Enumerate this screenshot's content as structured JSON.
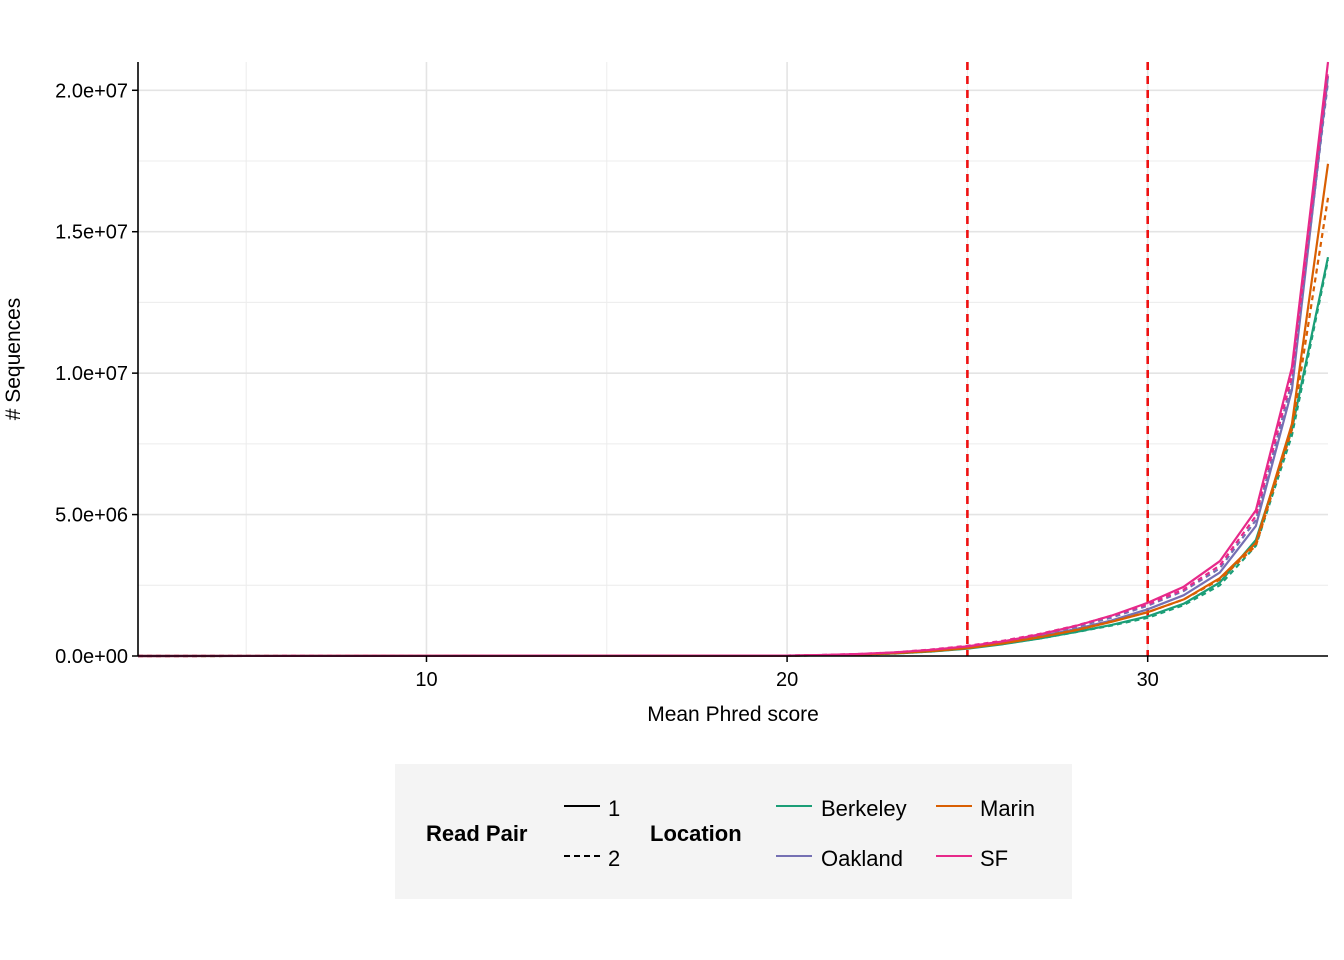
{
  "chart_data": {
    "type": "line",
    "xlabel": "Mean Phred score",
    "ylabel": "# Sequences",
    "xlim": [
      2,
      35
    ],
    "ylim": [
      0,
      21000000
    ],
    "x_ticks": [
      10,
      20,
      30
    ],
    "x_tick_labels": [
      "10",
      "20",
      "30"
    ],
    "y_ticks": [
      0,
      5000000,
      10000000,
      15000000,
      20000000
    ],
    "y_tick_labels": [
      "0.0e+00",
      "5.0e+06",
      "1.0e+07",
      "1.5e+07",
      "2.0e+07"
    ],
    "grid": true,
    "reference_lines": [
      25,
      30
    ],
    "reference_line_color": "#ee1111",
    "x": [
      2,
      20,
      21,
      22,
      23,
      24,
      25,
      26,
      27,
      28,
      29,
      30,
      31,
      32,
      33,
      34,
      35
    ],
    "series": [
      {
        "location": "Berkeley",
        "read_pair": "1",
        "color": "#1b9e77",
        "values": [
          0,
          10000,
          25000,
          50000,
          90000,
          160000,
          260000,
          420000,
          620000,
          850000,
          1100000,
          1400000,
          1850000,
          2600000,
          4100000,
          8000000,
          14100000
        ]
      },
      {
        "location": "Berkeley",
        "read_pair": "2",
        "color": "#1b9e77",
        "values": [
          0,
          10000,
          25000,
          50000,
          90000,
          160000,
          270000,
          430000,
          620000,
          840000,
          1080000,
          1350000,
          1800000,
          2500000,
          3900000,
          7800000,
          14000000
        ]
      },
      {
        "location": "Oakland",
        "read_pair": "1",
        "color": "#7570b3",
        "values": [
          0,
          15000,
          30000,
          60000,
          110000,
          190000,
          300000,
          470000,
          690000,
          950000,
          1260000,
          1650000,
          2150000,
          2950000,
          4600000,
          9400000,
          20500000
        ]
      },
      {
        "location": "Oakland",
        "read_pair": "2",
        "color": "#7570b3",
        "values": [
          0,
          15000,
          35000,
          65000,
          120000,
          210000,
          340000,
          510000,
          740000,
          1020000,
          1360000,
          1780000,
          2300000,
          3100000,
          4800000,
          9700000,
          20300000
        ]
      },
      {
        "location": "Marin",
        "read_pair": "1",
        "color": "#d95f02",
        "values": [
          0,
          12000,
          28000,
          55000,
          100000,
          170000,
          280000,
          450000,
          660000,
          910000,
          1210000,
          1550000,
          2000000,
          2750000,
          4000000,
          8200000,
          17400000
        ]
      },
      {
        "location": "Marin",
        "read_pair": "2",
        "color": "#d95f02",
        "values": [
          0,
          12000,
          28000,
          55000,
          100000,
          180000,
          290000,
          460000,
          670000,
          920000,
          1220000,
          1550000,
          2000000,
          2700000,
          3900000,
          8000000,
          16200000
        ]
      },
      {
        "location": "SF",
        "read_pair": "1",
        "color": "#e7298a",
        "values": [
          0,
          15000,
          35000,
          70000,
          130000,
          220000,
          340000,
          520000,
          760000,
          1060000,
          1430000,
          1880000,
          2450000,
          3350000,
          5150000,
          10200000,
          21000000
        ]
      },
      {
        "location": "SF",
        "read_pair": "2",
        "color": "#e7298a",
        "values": [
          0,
          15000,
          35000,
          70000,
          130000,
          230000,
          360000,
          540000,
          780000,
          1070000,
          1420000,
          1830000,
          2350000,
          3200000,
          4950000,
          9900000,
          20700000
        ]
      }
    ]
  },
  "legend": {
    "read_pair_title": "Read Pair",
    "read_pair_items": [
      "1",
      "2"
    ],
    "location_title": "Location",
    "location_items": [
      {
        "label": "Berkeley",
        "color": "#1b9e77"
      },
      {
        "label": "Marin",
        "color": "#d95f02"
      },
      {
        "label": "Oakland",
        "color": "#7570b3"
      },
      {
        "label": "SF",
        "color": "#e7298a"
      }
    ]
  }
}
